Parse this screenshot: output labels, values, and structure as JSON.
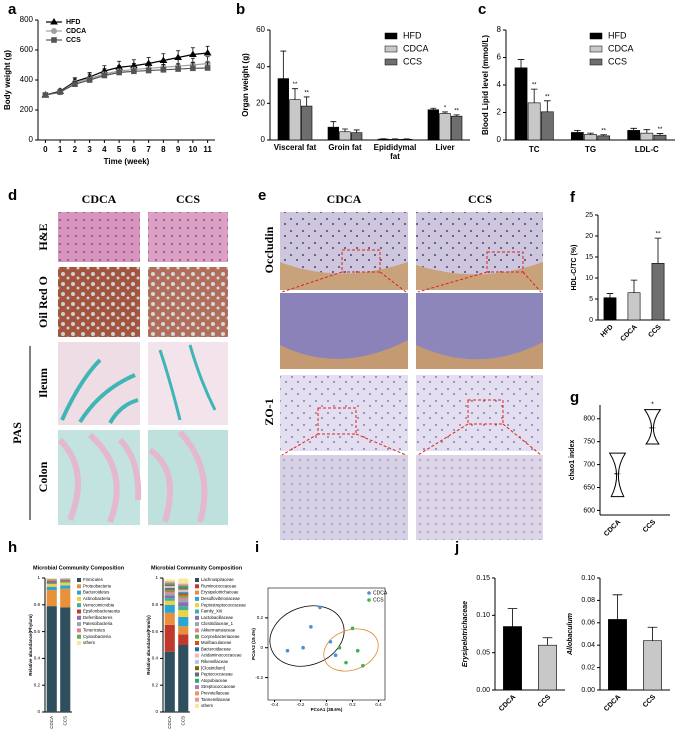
{
  "chart_data": [
    {
      "panel": "a",
      "type": "line",
      "xlabel": "Time (week)",
      "ylabel": "Body weight (g)",
      "x": [
        0,
        1,
        2,
        3,
        4,
        5,
        6,
        7,
        8,
        9,
        10,
        11
      ],
      "xlim": [
        -0.5,
        11.5
      ],
      "xticks": [
        0,
        1,
        2,
        3,
        4,
        5,
        6,
        7,
        8,
        9,
        10,
        11
      ],
      "ylim": [
        0,
        800
      ],
      "yticks": [
        0,
        200,
        400,
        600,
        800
      ],
      "legend": "upper left",
      "series": [
        {
          "name": "HFD",
          "color": "#000000",
          "marker": "triangle",
          "values": [
            300,
            325,
            390,
            420,
            460,
            485,
            495,
            510,
            530,
            550,
            570,
            580
          ],
          "errors": [
            10,
            15,
            25,
            30,
            35,
            40,
            40,
            40,
            45,
            45,
            45,
            45
          ]
        },
        {
          "name": "CDCA",
          "color": "#a0a0a0",
          "marker": "circle",
          "values": [
            300,
            318,
            382,
            410,
            440,
            460,
            470,
            478,
            485,
            492,
            500,
            510
          ],
          "errors": [
            10,
            15,
            25,
            30,
            35,
            35,
            40,
            40,
            40,
            45,
            45,
            45
          ]
        },
        {
          "name": "CCS",
          "color": "#555555",
          "marker": "square",
          "values": [
            300,
            320,
            372,
            400,
            430,
            450,
            458,
            463,
            468,
            473,
            478,
            480
          ],
          "errors": [
            10,
            15,
            20,
            25,
            30,
            30,
            35,
            35,
            35,
            35,
            40,
            40
          ]
        }
      ]
    },
    {
      "panel": "b",
      "type": "bar",
      "ylabel": "Organ weight (g)",
      "categories": [
        "Visceral fat",
        "Groin fat",
        "Epididymal fat",
        "Liver"
      ],
      "ylim": [
        0,
        60
      ],
      "yticks": [
        0,
        20,
        40,
        60
      ],
      "legend": "upper right",
      "series": [
        {
          "name": "HFD",
          "color": "#000000",
          "values": [
            33.5,
            7,
            0.5,
            16.5
          ],
          "errors": [
            15,
            3,
            0.2,
            0.8
          ]
        },
        {
          "name": "CDCA",
          "color": "#c8c8c8",
          "values": [
            22,
            4.5,
            0.4,
            14.5
          ],
          "errors": [
            6,
            1.5,
            0.2,
            0.8
          ],
          "significance": [
            "**",
            null,
            null,
            "*"
          ]
        },
        {
          "name": "CCS",
          "color": "#6e6e6e",
          "values": [
            18.5,
            4,
            0.4,
            13
          ],
          "errors": [
            5,
            1.5,
            0.2,
            0.7
          ],
          "significance": [
            "**",
            null,
            null,
            "**"
          ]
        }
      ]
    },
    {
      "panel": "c",
      "type": "bar",
      "ylabel": "Blood Lipid level (mmol/L)",
      "categories": [
        "TC",
        "TG",
        "LDL-C"
      ],
      "ylim": [
        0,
        8
      ],
      "yticks": [
        0,
        2,
        4,
        6,
        8
      ],
      "legend": "upper right",
      "series": [
        {
          "name": "HFD",
          "color": "#000000",
          "values": [
            5.25,
            0.55,
            0.7
          ],
          "errors": [
            0.6,
            0.15,
            0.15
          ]
        },
        {
          "name": "CDCA",
          "color": "#c8c8c8",
          "values": [
            2.7,
            0.4,
            0.5
          ],
          "errors": [
            1.0,
            0.1,
            0.25
          ],
          "significance": [
            "**",
            null,
            null
          ]
        },
        {
          "name": "CCS",
          "color": "#6e6e6e",
          "values": [
            2.05,
            0.3,
            0.35
          ],
          "errors": [
            0.8,
            0.08,
            0.12
          ],
          "significance": [
            "**",
            "**",
            "**"
          ]
        }
      ]
    },
    {
      "panel": "f",
      "type": "bar",
      "ylabel": "HDL-C/TC (%)",
      "categories": [
        "HFD",
        "CDCA",
        "CCS"
      ],
      "ylim": [
        0,
        25
      ],
      "yticks": [
        0,
        5,
        10,
        15,
        20,
        25
      ],
      "values": [
        5.3,
        6.5,
        13.5
      ],
      "errors": [
        1,
        3,
        6
      ],
      "colors": [
        "#000000",
        "#c8c8c8",
        "#6e6e6e"
      ],
      "significance": [
        null,
        null,
        "**"
      ]
    },
    {
      "panel": "g",
      "type": "violin",
      "ylabel": "chao1 index",
      "categories": [
        "CDCA",
        "CCS"
      ],
      "ylim": [
        590,
        830
      ],
      "yticks": [
        600,
        650,
        700,
        750,
        800
      ],
      "min": [
        630,
        745
      ],
      "median": [
        680,
        780
      ],
      "max": [
        725,
        820
      ],
      "significance": [
        null,
        "*"
      ]
    },
    {
      "panel": "h",
      "type": "stacked_bar",
      "title": "Microbial Community Composition",
      "ylabel": "Relative abundance(Phylum)",
      "categories": [
        "CDCA",
        "CCS"
      ],
      "ylim": [
        0,
        1
      ],
      "yticks": [
        0,
        0.2,
        0.4,
        0.6,
        0.8,
        1
      ],
      "series": [
        {
          "name": "Firmicutes",
          "color": "#2f4f5f",
          "values": [
            0.79,
            0.78
          ]
        },
        {
          "name": "Proteobacteria",
          "color": "#e8913a",
          "values": [
            0.12,
            0.14
          ]
        },
        {
          "name": "Bacteroidetes",
          "color": "#2aa6d6",
          "values": [
            0.025,
            0.025
          ]
        },
        {
          "name": "Actinobacteria",
          "color": "#f2d03a",
          "values": [
            0.02,
            0.02
          ]
        },
        {
          "name": "Verrucomicrobia",
          "color": "#3ab39c",
          "values": [
            0.01,
            0.01
          ]
        },
        {
          "name": "Epsilonbacteraeota",
          "color": "#c0392b",
          "values": [
            0.01,
            0.008
          ]
        },
        {
          "name": "Deferribacteres",
          "color": "#8e6bb0",
          "values": [
            0.006,
            0.005
          ]
        },
        {
          "name": "Patescibacteria",
          "color": "#9aa7b0",
          "values": [
            0.005,
            0.004
          ]
        },
        {
          "name": "Tenericutes",
          "color": "#e67e8a",
          "values": [
            0.004,
            0.003
          ]
        },
        {
          "name": "Cyanobacteria",
          "color": "#6aa84f",
          "values": [
            0.003,
            0.002
          ]
        },
        {
          "name": "others",
          "color": "#f7e8a0",
          "values": [
            0.007,
            0.003
          ]
        }
      ]
    },
    {
      "type": "stacked_bar",
      "title": "Microbial Community Composition",
      "ylabel": "Relative abundance(Family)",
      "categories": [
        "CDCA",
        "CCS"
      ],
      "ylim": [
        0,
        1
      ],
      "yticks": [
        0,
        0.2,
        0.4,
        0.6,
        0.8,
        1
      ],
      "series": [
        {
          "name": "Lachnospiraceae",
          "color": "#2f4f5f",
          "values": [
            0.45,
            0.5
          ]
        },
        {
          "name": "Ruminococcaceae",
          "color": "#c0392b",
          "values": [
            0.2,
            0.08
          ]
        },
        {
          "name": "Erysipelotrichaceae",
          "color": "#e8913a",
          "values": [
            0.09,
            0.06
          ]
        },
        {
          "name": "Desulfovibrionaceae",
          "color": "#2aa6d6",
          "values": [
            0.06,
            0.07
          ]
        },
        {
          "name": "Peptostreptococcaceae",
          "color": "#f2d03a",
          "values": [
            0.03,
            0.05
          ]
        },
        {
          "name": "Family_XIII",
          "color": "#3ab39c",
          "values": [
            0.02,
            0.03
          ]
        },
        {
          "name": "Lactobacillaceae",
          "color": "#8e6bb0",
          "values": [
            0.02,
            0.03
          ]
        },
        {
          "name": "Clostridiaceae_1",
          "color": "#9aa7b0",
          "values": [
            0.015,
            0.02
          ]
        },
        {
          "name": "Akkermansiaceae",
          "color": "#e67e8a",
          "values": [
            0.01,
            0.015
          ]
        },
        {
          "name": "Corynebacteriaceae",
          "color": "#6aa84f",
          "values": [
            0.01,
            0.015
          ]
        },
        {
          "name": "Muribaculaceae",
          "color": "#d35400",
          "values": [
            0.01,
            0.012
          ]
        },
        {
          "name": "Bacteroidaceae",
          "color": "#1f6fa8",
          "values": [
            0.01,
            0.012
          ]
        },
        {
          "name": "Acidaminococcaceae",
          "color": "#f5b7b1",
          "values": [
            0.008,
            0.01
          ]
        },
        {
          "name": "Rikenellaceae",
          "color": "#a9cce3",
          "values": [
            0.008,
            0.01
          ]
        },
        {
          "name": "[Clostridium]",
          "color": "#7d6608",
          "values": [
            0.007,
            0.01
          ]
        },
        {
          "name": "Peptococcaceae",
          "color": "#5d6d7e",
          "values": [
            0.006,
            0.008
          ]
        },
        {
          "name": "Atopobiaceae",
          "color": "#27ae60",
          "values": [
            0.006,
            0.008
          ]
        },
        {
          "name": "Streptococcaceae",
          "color": "#af7ac5",
          "values": [
            0.005,
            0.007
          ]
        },
        {
          "name": "Prevotellaceae",
          "color": "#e59866",
          "values": [
            0.005,
            0.006
          ]
        },
        {
          "name": "Tannerellaceae",
          "color": "#f1948a",
          "values": [
            0.004,
            0.005
          ]
        },
        {
          "name": "others",
          "color": "#f7e8a0",
          "values": [
            0.016,
            0.038
          ]
        }
      ]
    },
    {
      "panel": "i",
      "type": "scatter",
      "xlabel": "PCoA1 (38.6%)",
      "ylabel": "PCoA2 (19.4%)",
      "xlim": [
        -0.45,
        0.45
      ],
      "xticks": [
        -0.4,
        -0.2,
        0,
        0.2,
        0.4
      ],
      "ylim": [
        -0.35,
        0.4
      ],
      "yticks": [
        -0.2,
        0,
        0.2
      ],
      "legend": "upper right",
      "series": [
        {
          "name": "CDCA",
          "color": "#4a90d9",
          "x": [
            -0.3,
            -0.18,
            -0.12,
            -0.05,
            0.03,
            0.07
          ],
          "y": [
            -0.02,
            0.0,
            0.14,
            0.27,
            0.04,
            -0.05
          ]
        },
        {
          "name": "CCS",
          "color": "#3cb44b",
          "x": [
            0.1,
            0.15,
            0.2,
            0.24,
            0.28
          ],
          "y": [
            0.0,
            -0.1,
            0.13,
            -0.02,
            -0.12
          ]
        }
      ]
    },
    {
      "panel": "j",
      "type": "bar",
      "ylabel": "Erysipelotrichaceae",
      "italic": true,
      "categories": [
        "CDCA",
        "CCS"
      ],
      "ylim": [
        0,
        0.15
      ],
      "yticks": [
        {
          "value": 0,
          "label": "0.00"
        },
        {
          "value": 0.05,
          "label": "0.05"
        },
        {
          "value": 0.1,
          "label": "0.10"
        },
        {
          "value": 0.15,
          "label": "0.15"
        }
      ],
      "values": [
        0.085,
        0.06
      ],
      "errors": [
        0.024,
        0.01
      ],
      "colors": [
        "#000000",
        "#c8c8c8"
      ]
    },
    {
      "type": "bar",
      "ylabel": "Allobaculum",
      "italic": true,
      "categories": [
        "CDCA",
        "CCS"
      ],
      "ylim": [
        0,
        0.1
      ],
      "yticks": [
        {
          "value": 0,
          "label": "0.00"
        },
        {
          "value": 0.02,
          "label": "0.02"
        },
        {
          "value": 0.04,
          "label": "0.04"
        },
        {
          "value": 0.06,
          "label": "0.06"
        },
        {
          "value": 0.08,
          "label": "0.08"
        },
        {
          "value": 0.1,
          "label": "0.10"
        }
      ],
      "values": [
        0.063,
        0.044
      ],
      "errors": [
        0.022,
        0.012
      ],
      "colors": [
        "#000000",
        "#c8c8c8"
      ]
    }
  ],
  "histology": {
    "d": {
      "panel": "d",
      "columns": [
        "CDCA",
        "CCS"
      ],
      "rows": [
        "H&E",
        "Oil Red O",
        "Ileum",
        "Colon"
      ],
      "group": "PAS"
    },
    "e": {
      "panel": "e",
      "columns": [
        "CDCA",
        "CCS"
      ],
      "rows": [
        "Occludin",
        "ZO-1"
      ]
    }
  }
}
